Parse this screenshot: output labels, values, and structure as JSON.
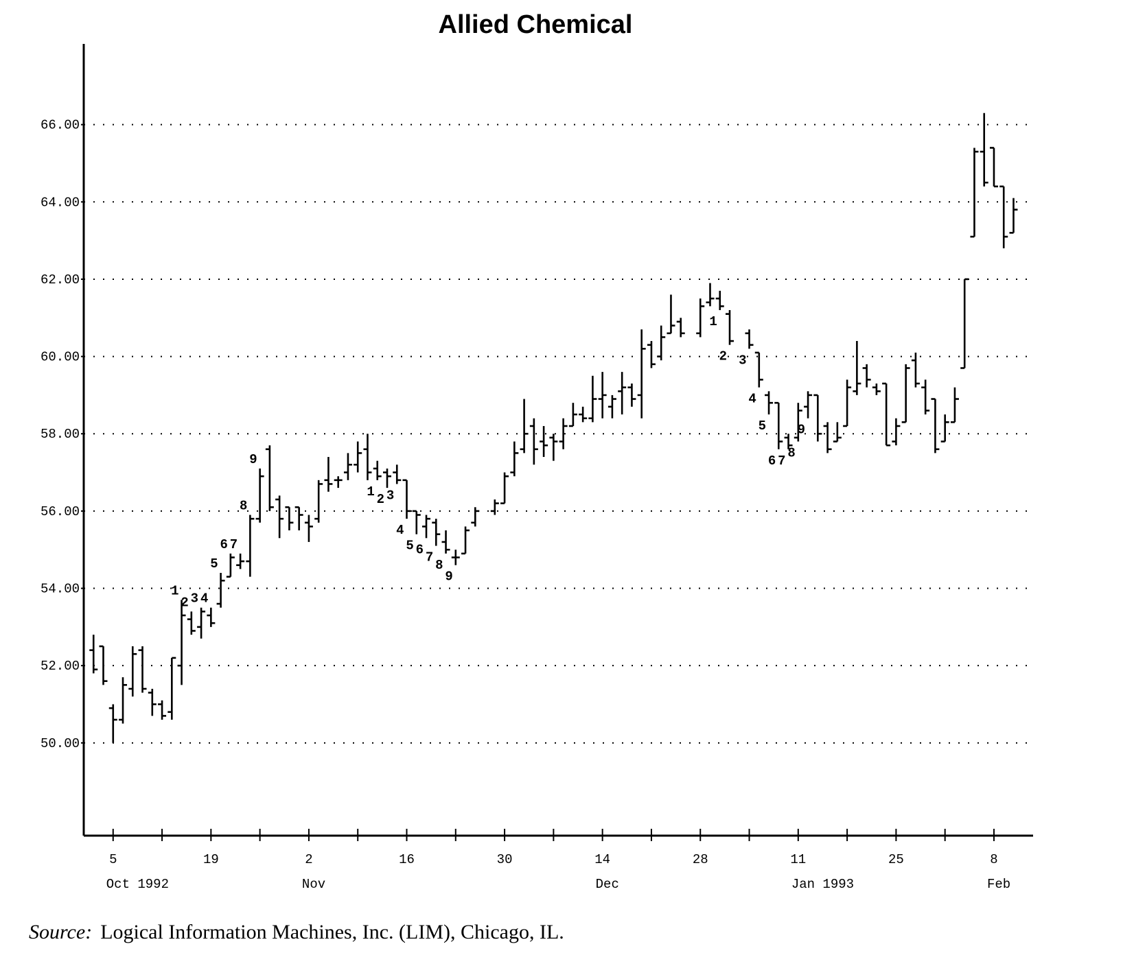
{
  "chart_data": {
    "type": "ohlc",
    "title": "Allied Chemical",
    "source_label": "Source:",
    "source": "Logical Information Machines, Inc. (LIM), Chicago, IL.",
    "color": "#000000",
    "grid": true,
    "ylim": [
      47.6,
      68
    ],
    "yticks": [
      {
        "value": 50,
        "label": "50.00"
      },
      {
        "value": 52,
        "label": "52.00"
      },
      {
        "value": 54,
        "label": "54.00"
      },
      {
        "value": 56,
        "label": "56.00"
      },
      {
        "value": 58,
        "label": "58.00"
      },
      {
        "value": 60,
        "label": "60.00"
      },
      {
        "value": 62,
        "label": "62.00"
      },
      {
        "value": 64,
        "label": "64.00"
      },
      {
        "value": 66,
        "label": "66.00"
      }
    ],
    "xlim": [
      "1992-09-30",
      "1993-02-12"
    ],
    "xticks": [
      {
        "value": "1992-10-05",
        "label": "5"
      },
      {
        "value": "1992-10-19",
        "label": "19"
      },
      {
        "value": "1992-11-02",
        "label": "2"
      },
      {
        "value": "1992-11-16",
        "label": "16"
      },
      {
        "value": "1992-11-30",
        "label": "30"
      },
      {
        "value": "1992-12-14",
        "label": "14"
      },
      {
        "value": "1992-12-28",
        "label": "28"
      },
      {
        "value": "1993-01-11",
        "label": "11"
      },
      {
        "value": "1993-01-25",
        "label": "25"
      },
      {
        "value": "1993-02-08",
        "label": "8"
      }
    ],
    "xminorticks": [
      "1992-10-12",
      "1992-10-26",
      "1992-11-09",
      "1992-11-23",
      "1992-12-07",
      "1992-12-21",
      "1993-01-04",
      "1993-01-18",
      "1993-02-01"
    ],
    "month_labels": [
      {
        "value": "1992-10-05",
        "label": "Oct 1992"
      },
      {
        "value": "1992-11-02",
        "label": "Nov"
      },
      {
        "value": "1992-12-14",
        "label": "Dec"
      },
      {
        "value": "1993-01-11",
        "label": "Jan 1993"
      },
      {
        "value": "1993-02-08",
        "label": "Feb"
      }
    ],
    "x": [
      "1992-10-01",
      "1992-10-02",
      "1992-10-05",
      "1992-10-06",
      "1992-10-07",
      "1992-10-08",
      "1992-10-09",
      "1992-10-12",
      "1992-10-13",
      "1992-10-14",
      "1992-10-15",
      "1992-10-16",
      "1992-10-19",
      "1992-10-20",
      "1992-10-21",
      "1992-10-22",
      "1992-10-23",
      "1992-10-26",
      "1992-10-27",
      "1992-10-28",
      "1992-10-29",
      "1992-10-30",
      "1992-11-02",
      "1992-11-03",
      "1992-11-04",
      "1992-11-05",
      "1992-11-06",
      "1992-11-09",
      "1992-11-10",
      "1992-11-11",
      "1992-11-12",
      "1992-11-13",
      "1992-11-16",
      "1992-11-17",
      "1992-11-18",
      "1992-11-19",
      "1992-11-20",
      "1992-11-23",
      "1992-11-24",
      "1992-11-25",
      "1992-11-27",
      "1992-11-30",
      "1992-12-01",
      "1992-12-02",
      "1992-12-03",
      "1992-12-04",
      "1992-12-07",
      "1992-12-08",
      "1992-12-09",
      "1992-12-10",
      "1992-12-11",
      "1992-12-14",
      "1992-12-15",
      "1992-12-16",
      "1992-12-17",
      "1992-12-18",
      "1992-12-21",
      "1992-12-22",
      "1992-12-23",
      "1992-12-24",
      "1992-12-28",
      "1992-12-29",
      "1992-12-30",
      "1992-12-31",
      "1993-01-04",
      "1993-01-05",
      "1993-01-06",
      "1993-01-07",
      "1993-01-08",
      "1993-01-11",
      "1993-01-12",
      "1993-01-13",
      "1993-01-14",
      "1993-01-15",
      "1993-01-18",
      "1993-01-19",
      "1993-01-20",
      "1993-01-21",
      "1993-01-22",
      "1993-01-25",
      "1993-01-26",
      "1993-01-27",
      "1993-01-28",
      "1993-01-29",
      "1993-02-01",
      "1993-02-02",
      "1993-02-03",
      "1993-02-04",
      "1993-02-05",
      "1993-02-08",
      "1993-02-09",
      "1993-02-10"
    ],
    "open": [
      52.4,
      52.5,
      50.9,
      50.6,
      51.4,
      52.4,
      51.3,
      51.0,
      50.8,
      52.0,
      53.2,
      53.0,
      53.3,
      53.6,
      54.3,
      54.6,
      54.7,
      55.8,
      57.6,
      56.3,
      56.1,
      56.1,
      55.7,
      55.8,
      56.8,
      56.8,
      57.0,
      57.2,
      57.6,
      57.1,
      57.0,
      57.0,
      56.8,
      56.0,
      55.6,
      55.7,
      55.2,
      54.8,
      54.9,
      55.7,
      56.0,
      56.2,
      57.0,
      57.6,
      58.2,
      57.8,
      57.9,
      57.8,
      58.2,
      58.5,
      58.4,
      58.9,
      58.7,
      59.1,
      59.2,
      59.0,
      60.3,
      60.0,
      60.6,
      60.9,
      60.6,
      61.4,
      61.5,
      61.1,
      60.6,
      60.1,
      59.0,
      58.8,
      57.9,
      57.9,
      58.7,
      59.0,
      58.2,
      57.8,
      58.2,
      59.1,
      59.7,
      59.2,
      59.3,
      57.8,
      58.3,
      59.9,
      59.2,
      58.9,
      57.8,
      58.3,
      59.7,
      63.1,
      65.3,
      65.4,
      64.4,
      63.2
    ],
    "high": [
      52.8,
      52.5,
      51.0,
      51.7,
      52.5,
      52.5,
      51.4,
      51.1,
      52.2,
      53.7,
      53.4,
      53.5,
      53.5,
      54.4,
      54.9,
      54.9,
      55.9,
      57.1,
      57.7,
      56.4,
      56.1,
      56.1,
      55.9,
      56.8,
      57.4,
      56.9,
      57.5,
      57.8,
      58.0,
      57.3,
      57.1,
      57.2,
      56.8,
      56.0,
      55.9,
      55.8,
      55.5,
      55.0,
      55.6,
      56.1,
      56.3,
      57.0,
      57.8,
      58.9,
      58.4,
      58.2,
      58.0,
      58.4,
      58.8,
      58.7,
      59.5,
      59.6,
      59.0,
      59.6,
      59.3,
      60.7,
      60.4,
      60.8,
      61.6,
      61.0,
      61.5,
      61.9,
      61.7,
      61.2,
      60.7,
      60.1,
      59.1,
      58.8,
      58.0,
      58.8,
      59.1,
      59.0,
      58.3,
      58.3,
      59.4,
      60.4,
      59.8,
      59.3,
      59.3,
      58.4,
      59.8,
      60.1,
      59.4,
      58.9,
      58.5,
      59.2,
      62.0,
      65.4,
      66.3,
      65.4,
      64.4,
      64.1
    ],
    "low": [
      51.8,
      51.5,
      50.0,
      50.5,
      51.2,
      51.3,
      50.7,
      50.6,
      50.6,
      51.5,
      52.8,
      52.7,
      53.0,
      53.5,
      54.3,
      54.5,
      54.3,
      55.7,
      56.0,
      55.3,
      55.5,
      55.5,
      55.2,
      55.7,
      56.5,
      56.6,
      56.8,
      57.0,
      56.8,
      56.8,
      56.6,
      56.7,
      55.8,
      55.4,
      55.3,
      55.1,
      54.9,
      54.6,
      54.9,
      55.6,
      55.9,
      56.2,
      56.9,
      57.5,
      57.2,
      57.4,
      57.3,
      57.6,
      58.2,
      58.3,
      58.3,
      58.4,
      58.4,
      58.5,
      58.7,
      58.4,
      59.7,
      59.9,
      60.6,
      60.5,
      60.5,
      61.3,
      61.2,
      60.3,
      60.2,
      59.2,
      58.5,
      57.6,
      57.6,
      57.8,
      58.4,
      57.8,
      57.5,
      57.8,
      58.2,
      59.0,
      59.2,
      59.0,
      57.7,
      57.7,
      58.3,
      59.2,
      58.5,
      57.5,
      57.8,
      58.3,
      59.7,
      63.1,
      64.4,
      64.4,
      62.8,
      63.2
    ],
    "close": [
      51.9,
      51.6,
      50.6,
      51.5,
      52.3,
      51.4,
      51.0,
      50.7,
      52.2,
      53.3,
      52.9,
      53.4,
      53.1,
      54.2,
      54.8,
      54.7,
      55.8,
      56.9,
      56.1,
      55.8,
      55.7,
      55.9,
      55.6,
      56.7,
      56.7,
      56.8,
      57.2,
      57.5,
      57.0,
      56.9,
      56.9,
      56.8,
      56.0,
      55.9,
      55.8,
      55.4,
      55.0,
      54.8,
      55.5,
      56.0,
      56.2,
      56.9,
      57.5,
      58.0,
      57.6,
      57.7,
      57.8,
      58.2,
      58.5,
      58.4,
      58.9,
      59.0,
      58.9,
      59.2,
      58.9,
      60.2,
      59.8,
      60.5,
      60.8,
      60.6,
      61.3,
      61.5,
      61.3,
      60.4,
      60.3,
      59.4,
      58.8,
      57.8,
      57.7,
      58.6,
      59.0,
      58.0,
      57.6,
      57.9,
      59.2,
      59.3,
      59.4,
      59.1,
      57.7,
      58.2,
      59.7,
      59.3,
      58.6,
      57.6,
      58.3,
      58.9,
      62.0,
      65.3,
      64.5,
      64.4,
      63.1,
      63.8
    ],
    "counts": [
      null,
      null,
      null,
      null,
      null,
      null,
      null,
      null,
      null,
      1,
      2,
      3,
      4,
      5,
      6,
      7,
      8,
      9,
      null,
      null,
      null,
      null,
      null,
      null,
      null,
      null,
      null,
      null,
      null,
      1,
      2,
      3,
      4,
      5,
      6,
      7,
      8,
      9,
      null,
      null,
      null,
      null,
      null,
      null,
      null,
      null,
      null,
      null,
      null,
      null,
      null,
      null,
      null,
      null,
      null,
      null,
      null,
      null,
      null,
      null,
      null,
      null,
      1,
      2,
      3,
      4,
      5,
      6,
      7,
      8,
      9,
      null,
      null,
      null,
      null,
      null,
      null,
      null,
      null,
      null,
      null,
      null,
      null,
      null,
      null,
      null,
      null,
      null,
      null,
      null,
      null,
      null
    ]
  }
}
